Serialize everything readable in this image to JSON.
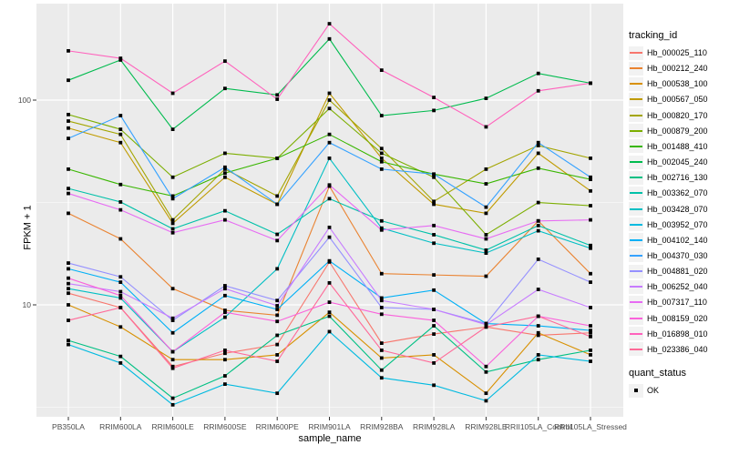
{
  "colors": {
    "panel_bg": "#EBEBEB",
    "grid": "#FFFFFF",
    "axis_text": "#4D4D4D",
    "tick_mark": "#333333",
    "point": "#000000",
    "legend_key_bg": "#F2F2F2"
  },
  "layout_text": {
    "y_axis_title": "FPKM + 1",
    "x_axis_title": "sample_name"
  },
  "legend": {
    "tracking_title": "tracking_id",
    "quant_title": "quant_status",
    "quant_items": [
      {
        "label": "OK",
        "marker": "black-square"
      }
    ]
  },
  "chart_data": {
    "type": "line",
    "title": "",
    "xlabel": "sample_name",
    "ylabel": "FPKM + 1",
    "y_scale": "log10",
    "y_tick_values": [
      10,
      100
    ],
    "y_minor_values": [
      3.162,
      31.62
    ],
    "grid": true,
    "legend_position": "right",
    "point_marker": "filled-black-square (quant_status OK)",
    "categories": [
      "PB350LA",
      "RRIM600LA",
      "RRIM600LE",
      "RRIM600SE",
      "RRIM600PE",
      "RRIM901LA",
      "RRIM928BA",
      "RRIM928LA",
      "RRIM928LE",
      "RRII105LA_Control",
      "RRII105LA_Stressed"
    ],
    "series": [
      {
        "name": "Hb_000025_110",
        "color": "#F8766D",
        "values": [
          11.4,
          9.7,
          5.0,
          5.8,
          6.4,
          16.2,
          6.5,
          7.2,
          7.8,
          7.1,
          7.3
        ]
      },
      {
        "name": "Hb_000212_240",
        "color": "#EA8331",
        "values": [
          28,
          21,
          12.0,
          9.4,
          8.9,
          38,
          14.2,
          14.0,
          13.8,
          25.7,
          14.2
        ]
      },
      {
        "name": "Hb_000538_100",
        "color": "#D89000",
        "values": [
          10,
          7.8,
          5.4,
          5.4,
          5.7,
          9.2,
          5.5,
          5.7,
          3.7,
          7.3,
          5.7
        ]
      },
      {
        "name": "Hb_000567_050",
        "color": "#C09B00",
        "values": [
          73,
          62,
          25,
          42,
          31,
          108,
          52,
          31,
          28,
          55,
          36
        ]
      },
      {
        "name": "Hb_000820_170",
        "color": "#A3A500",
        "values": [
          79,
          68,
          26,
          46,
          34,
          100,
          58,
          32,
          46,
          60,
          52
        ]
      },
      {
        "name": "Hb_000879_200",
        "color": "#7CAE00",
        "values": [
          85,
          72,
          42,
          55,
          52,
          91,
          55,
          42,
          22,
          31.6,
          30.5
        ]
      },
      {
        "name": "Hb_001488_410",
        "color": "#39B600",
        "values": [
          46,
          38.7,
          34,
          44,
          52,
          68,
          50,
          43.5,
          39,
          46.5,
          41
        ]
      },
      {
        "name": "Hb_002045_240",
        "color": "#00BB4E",
        "values": [
          125,
          157,
          72,
          114,
          106,
          199,
          84,
          89,
          102,
          135,
          121
        ]
      },
      {
        "name": "Hb_002716_130",
        "color": "#00C083",
        "values": [
          6.7,
          5.6,
          3.5,
          4.5,
          7.1,
          8.8,
          4.8,
          7.9,
          4.7,
          5.4,
          6.0
        ]
      },
      {
        "name": "Hb_003362_070",
        "color": "#00C1A9",
        "values": [
          37,
          31.8,
          23.5,
          28.8,
          22.1,
          33,
          25.7,
          22,
          18.5,
          24.4,
          19.5
        ]
      },
      {
        "name": "Hb_003428_070",
        "color": "#00BFC4",
        "values": [
          12,
          10.8,
          5.9,
          8.7,
          15,
          52,
          23.7,
          20,
          17.9,
          23,
          18.9
        ]
      },
      {
        "name": "Hb_003952_070",
        "color": "#00BAE0",
        "values": [
          6.4,
          5.2,
          3.25,
          4.1,
          3.7,
          7.4,
          4.4,
          4.05,
          3.4,
          5.7,
          5.3
        ]
      },
      {
        "name": "Hb_004102_140",
        "color": "#00B0F6",
        "values": [
          15,
          12.9,
          7.3,
          11.1,
          9.5,
          16.4,
          10.8,
          11.8,
          8.1,
          7.9,
          7.5
        ]
      },
      {
        "name": "Hb_004370_030",
        "color": "#35A2FF",
        "values": [
          65,
          84,
          33,
          47,
          31,
          62,
          46,
          43.5,
          30,
          62,
          42
        ]
      },
      {
        "name": "Hb_004881_020",
        "color": "#9590FF",
        "values": [
          16,
          13.7,
          8.4,
          12.4,
          10.5,
          21.4,
          9.7,
          9.5,
          8.1,
          16.7,
          12.9
        ]
      },
      {
        "name": "Hb_006252_040",
        "color": "#C77CFF",
        "values": [
          12.7,
          11.6,
          8.6,
          12.0,
          9.9,
          23.9,
          10.5,
          9.5,
          8.0,
          11.9,
          9.7
        ]
      },
      {
        "name": "Hb_007317_110",
        "color": "#E76BF3",
        "values": [
          35,
          29.1,
          22.5,
          26,
          20.6,
          38.5,
          23.2,
          24.4,
          21,
          25.7,
          26
        ]
      },
      {
        "name": "Hb_008159_020",
        "color": "#FA62DB",
        "values": [
          13.5,
          11.1,
          5.9,
          9.2,
          8.3,
          10.3,
          9.0,
          8.4,
          5.0,
          8.8,
          7.9
        ]
      },
      {
        "name": "Hb_016898_010",
        "color": "#FF62BC",
        "values": [
          174,
          160,
          108,
          155,
          101,
          236,
          140,
          103,
          74,
          111,
          121
        ]
      },
      {
        "name": "Hb_023386_040",
        "color": "#FF6A98",
        "values": [
          8.4,
          9.7,
          4.9,
          6.0,
          5.3,
          12.8,
          6.0,
          5.2,
          7.8,
          8.8,
          7.0
        ]
      }
    ]
  }
}
